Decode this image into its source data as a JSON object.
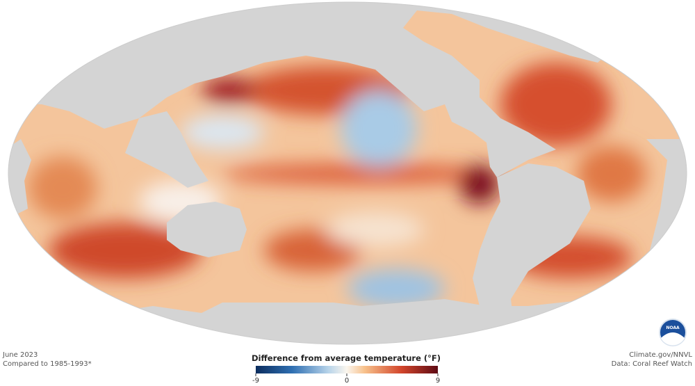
{
  "map": {
    "date": "June 2023",
    "baseline": "Compared to 1985-1993*",
    "legend": {
      "title": "Difference from average temperature (°F)",
      "ticks": [
        -9,
        0,
        9
      ]
    },
    "credit": "Climate.gov/NNVL",
    "source": "Data: Coral Reef Watch",
    "logo": "NOAA"
  }
}
